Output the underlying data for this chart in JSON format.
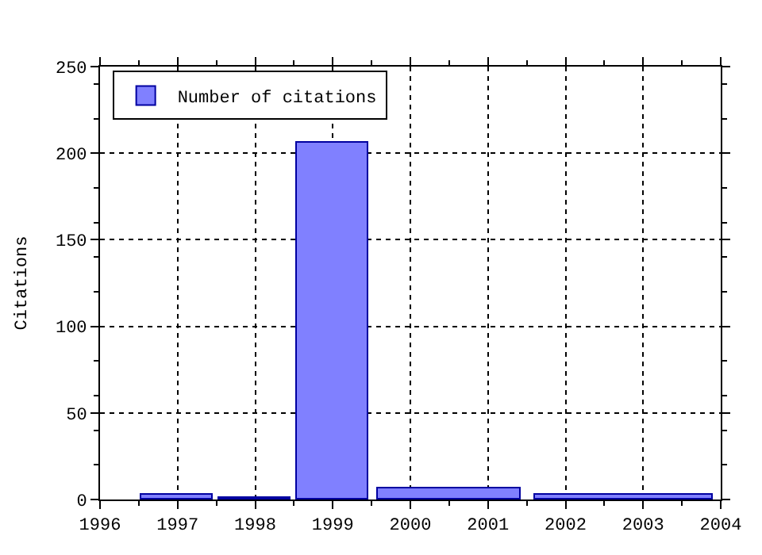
{
  "chart_data": {
    "type": "histogram",
    "ylabel": "Citations",
    "bins": [
      1996.5,
      1997.5,
      1998.5,
      1999.5,
      2001.5,
      2004
    ],
    "series": [
      {
        "name": "Number of citations",
        "color": "#8080ff",
        "values": [
          3,
          1,
          206,
          6,
          3
        ]
      }
    ],
    "xlim": [
      1996,
      2004
    ],
    "xticks": [
      1996,
      1997,
      1998,
      1999,
      2000,
      2001,
      2002,
      2003,
      2004
    ],
    "ylim": [
      0,
      250
    ],
    "yticks": [
      0,
      50,
      100,
      150,
      200,
      250
    ],
    "grid": true,
    "legend": "top left"
  }
}
